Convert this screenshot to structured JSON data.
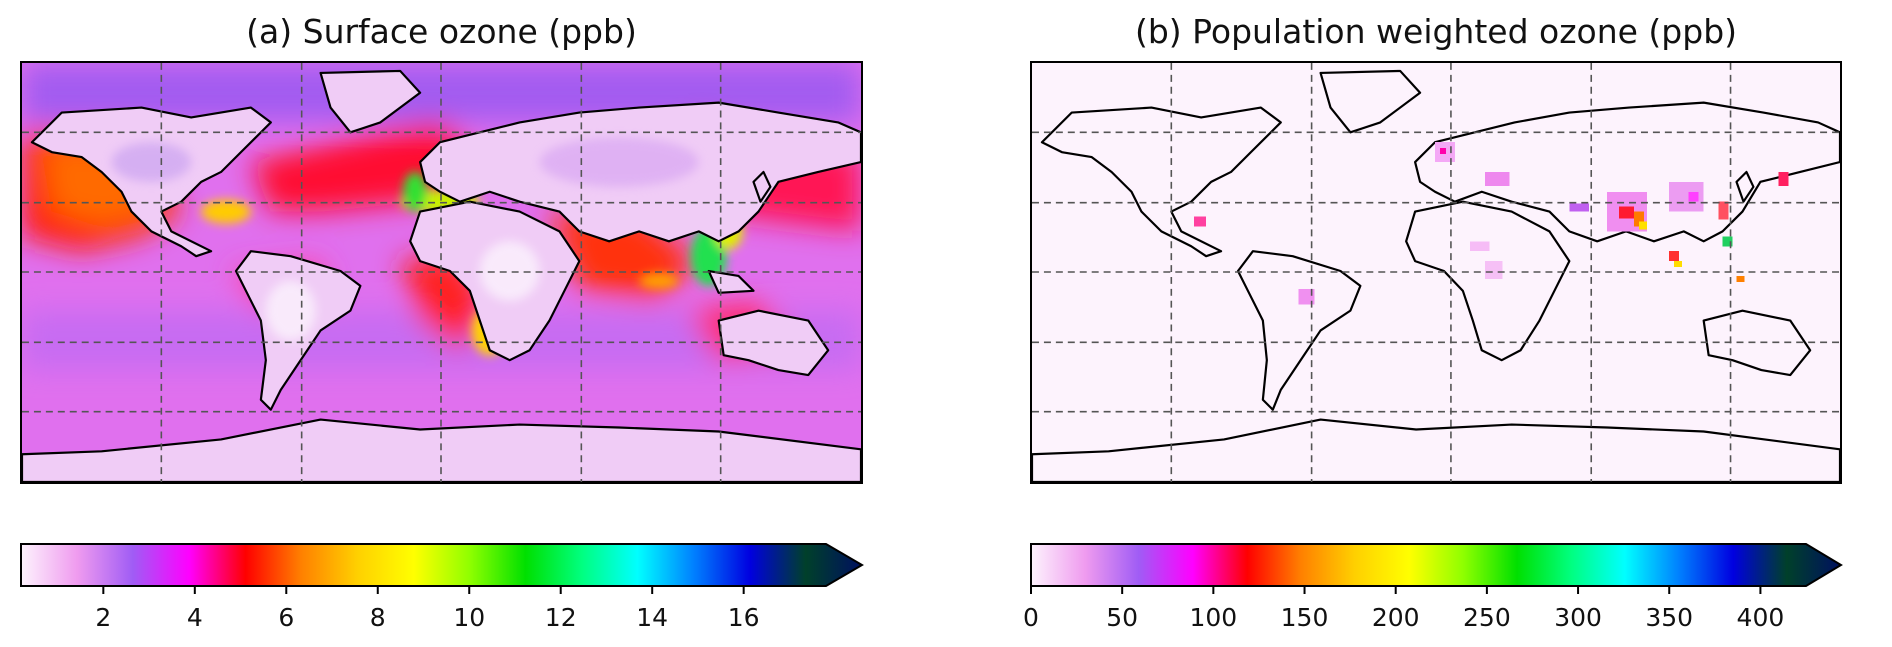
{
  "panels": [
    {
      "title": "(a) Surface ozone (ppb)",
      "colorbar": {
        "ticks": [
          "2",
          "4",
          "6",
          "8",
          "10",
          "12",
          "14",
          "16"
        ],
        "tick_values": [
          2,
          4,
          6,
          8,
          10,
          12,
          14,
          16
        ],
        "range": [
          0.2,
          17.8
        ],
        "extend": "max"
      }
    },
    {
      "title": "(b) Population weighted ozone (ppb)",
      "colorbar": {
        "ticks": [
          "0",
          "50",
          "100",
          "150",
          "200",
          "250",
          "300",
          "350",
          "400"
        ],
        "tick_values": [
          0,
          50,
          100,
          150,
          200,
          250,
          300,
          350,
          400
        ],
        "range": [
          0,
          425
        ],
        "extend": "max"
      }
    }
  ],
  "colormap": {
    "name": "gist_ncar-like",
    "stops": [
      "#fdf3fd",
      "#ef9bef",
      "#a05cf5",
      "#ff00ff",
      "#ff0000",
      "#ff8000",
      "#ffd000",
      "#ffff00",
      "#90ff00",
      "#00e000",
      "#00ff80",
      "#00ffff",
      "#0080ff",
      "#0000e0",
      "#00402a",
      "#001060"
    ]
  },
  "map": {
    "projection": "PlateCarree",
    "gridlines": "dashed",
    "coastlines": true
  }
}
